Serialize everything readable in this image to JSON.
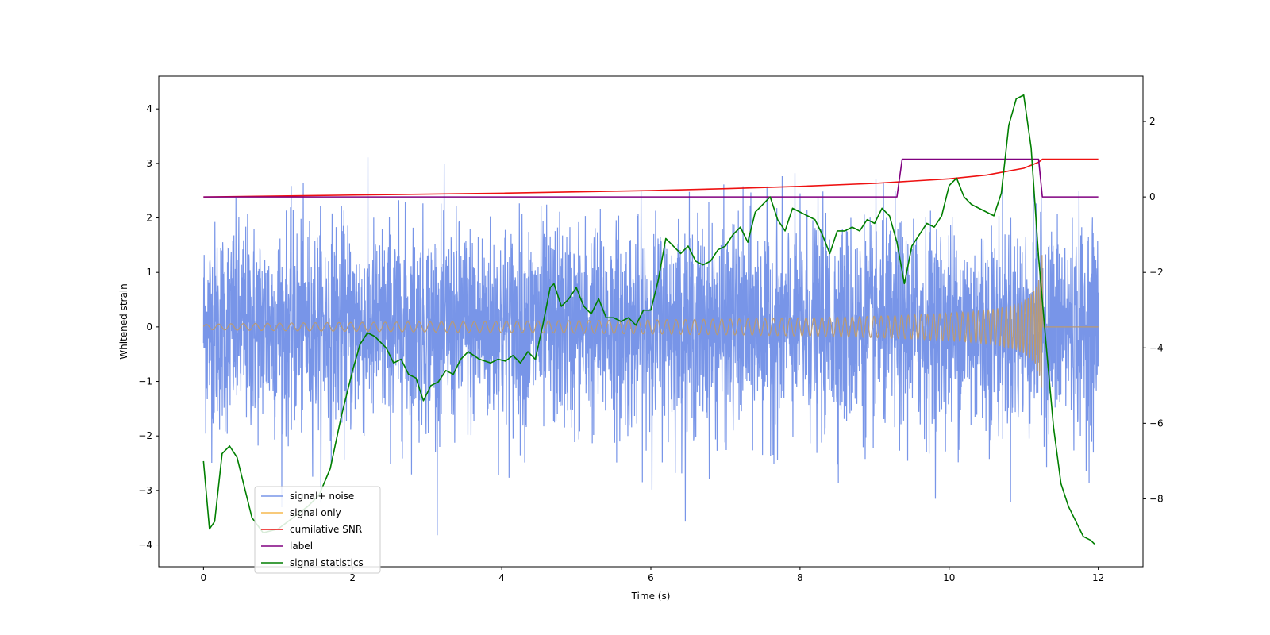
{
  "chart_data": {
    "type": "line",
    "xlabel": "Time (s)",
    "ylabel": "Whitened strain",
    "xlim": [
      -0.6,
      12.6
    ],
    "ylim": [
      -4.4,
      4.6
    ],
    "y2lim": [
      -9.8,
      3.2
    ],
    "grid": false,
    "legend_position": "lower-left",
    "x_ticks": [
      0,
      2,
      4,
      6,
      8,
      10,
      12
    ],
    "x_tick_labels": [
      "0",
      "2",
      "4",
      "6",
      "8",
      "10",
      "12"
    ],
    "y_ticks": [
      -4,
      -3,
      -2,
      -1,
      0,
      1,
      2,
      3,
      4
    ],
    "y_tick_labels": [
      "−4",
      "−3",
      "−2",
      "−1",
      "0",
      "1",
      "2",
      "3",
      "4"
    ],
    "y2_ticks": [
      -8,
      -6,
      -4,
      -2,
      0,
      2
    ],
    "y2_tick_labels": [
      "−8",
      "−6",
      "−4",
      "−2",
      "0",
      "2"
    ],
    "series": [
      {
        "name": "signal+ noise",
        "axis": "left",
        "color": "#7895e8",
        "kind": "noise",
        "x_range": [
          0,
          12
        ],
        "std": 0.95,
        "peak_max": 4.2,
        "peak_min": -3.9
      },
      {
        "name": "signal only",
        "axis": "left",
        "color": "#f5b94e",
        "overlap_color": "#b99a74",
        "kind": "chirp",
        "x_range": [
          0,
          11.25
        ],
        "amp_start": 0.04,
        "amp_end": 1.5
      },
      {
        "name": "cumilative SNR",
        "axis": "right",
        "color": "#ee1111",
        "x": [
          0,
          2,
          4,
          6,
          7,
          8,
          9,
          10,
          10.5,
          11,
          11.2,
          11.25,
          12
        ],
        "y": [
          0,
          0.05,
          0.1,
          0.17,
          0.22,
          0.28,
          0.36,
          0.48,
          0.58,
          0.76,
          0.92,
          1.0,
          1.0
        ]
      },
      {
        "name": "label",
        "axis": "right",
        "color": "#800080",
        "x": [
          0,
          9.3,
          9.37,
          11.2,
          11.25,
          12
        ],
        "y": [
          0,
          0,
          1,
          1,
          0,
          0
        ]
      },
      {
        "name": "signal statistics",
        "axis": "right",
        "color": "#007f00",
        "x": [
          0,
          0.08,
          0.15,
          0.25,
          0.35,
          0.45,
          0.55,
          0.65,
          0.8,
          1.0,
          1.2,
          1.4,
          1.55,
          1.7,
          1.85,
          2.0,
          2.1,
          2.2,
          2.3,
          2.35,
          2.45,
          2.55,
          2.65,
          2.75,
          2.85,
          2.95,
          3.05,
          3.15,
          3.25,
          3.35,
          3.45,
          3.55,
          3.7,
          3.85,
          3.95,
          4.05,
          4.15,
          4.25,
          4.35,
          4.45,
          4.55,
          4.65,
          4.7,
          4.8,
          4.9,
          5.0,
          5.1,
          5.2,
          5.3,
          5.4,
          5.5,
          5.6,
          5.7,
          5.8,
          5.9,
          6.0,
          6.1,
          6.2,
          6.3,
          6.4,
          6.5,
          6.6,
          6.7,
          6.8,
          6.9,
          7.0,
          7.1,
          7.2,
          7.3,
          7.4,
          7.5,
          7.6,
          7.7,
          7.8,
          7.9,
          8.0,
          8.1,
          8.2,
          8.3,
          8.4,
          8.5,
          8.6,
          8.7,
          8.8,
          8.9,
          9.0,
          9.1,
          9.2,
          9.3,
          9.4,
          9.5,
          9.6,
          9.7,
          9.8,
          9.9,
          10.0,
          10.1,
          10.2,
          10.3,
          10.4,
          10.5,
          10.6,
          10.7,
          10.8,
          10.9,
          11.0,
          11.1,
          11.2,
          11.3,
          11.4,
          11.5,
          11.6,
          11.7,
          11.8,
          11.9,
          11.95
        ],
        "y": [
          -7.0,
          -8.8,
          -8.6,
          -6.8,
          -6.6,
          -6.9,
          -7.7,
          -8.5,
          -8.9,
          -8.8,
          -8.5,
          -8.2,
          -7.9,
          -7.2,
          -5.8,
          -4.6,
          -3.9,
          -3.6,
          -3.7,
          -3.8,
          -4.0,
          -4.4,
          -4.3,
          -4.7,
          -4.8,
          -5.4,
          -5.0,
          -4.9,
          -4.6,
          -4.7,
          -4.3,
          -4.1,
          -4.3,
          -4.4,
          -4.3,
          -4.35,
          -4.2,
          -4.4,
          -4.1,
          -4.3,
          -3.4,
          -2.4,
          -2.3,
          -2.9,
          -2.7,
          -2.4,
          -2.9,
          -3.1,
          -2.7,
          -3.2,
          -3.2,
          -3.3,
          -3.2,
          -3.4,
          -3.0,
          -3.0,
          -2.2,
          -1.1,
          -1.3,
          -1.5,
          -1.3,
          -1.7,
          -1.8,
          -1.7,
          -1.4,
          -1.3,
          -1.0,
          -0.8,
          -1.2,
          -0.4,
          -0.2,
          0.0,
          -0.6,
          -0.9,
          -0.3,
          -0.4,
          -0.5,
          -0.6,
          -1.0,
          -1.5,
          -0.9,
          -0.9,
          -0.8,
          -0.9,
          -0.6,
          -0.7,
          -0.3,
          -0.5,
          -1.2,
          -2.3,
          -1.3,
          -1.0,
          -0.7,
          -0.8,
          -0.5,
          0.3,
          0.5,
          0.0,
          -0.2,
          -0.3,
          -0.4,
          -0.5,
          0.1,
          1.9,
          2.6,
          2.7,
          1.3,
          -1.6,
          -3.9,
          -6.1,
          -7.6,
          -8.2,
          -8.6,
          -9.0,
          -9.1,
          -9.2
        ]
      }
    ]
  }
}
